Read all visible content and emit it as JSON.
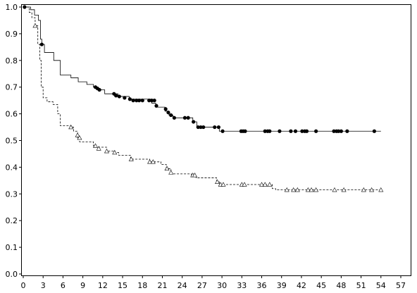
{
  "chart_data": {
    "type": "line",
    "title": "",
    "xlabel": "",
    "ylabel": "",
    "xlim": [
      0,
      57
    ],
    "ylim": [
      0,
      1
    ],
    "x_ticks": [
      0,
      3,
      6,
      9,
      12,
      15,
      18,
      21,
      24,
      27,
      30,
      33,
      36,
      39,
      42,
      45,
      48,
      51,
      54,
      57
    ],
    "y_ticks": [
      0.0,
      0.1,
      0.2,
      0.3,
      0.4,
      0.5,
      0.6,
      0.7,
      0.8,
      0.9,
      1.0
    ],
    "y_tick_labels": [
      "0.0",
      "0.1",
      "0.2",
      "0.3",
      "0.4",
      "0.5",
      "0.6",
      "0.7",
      "0.8",
      "0.9",
      "1.0"
    ],
    "grid": false,
    "legend": "none",
    "series": [
      {
        "line_style": "solid",
        "marker": "filled-circle",
        "color": "#000000",
        "steps": [
          [
            0,
            1.0
          ],
          [
            1.1,
            0.99
          ],
          [
            1.7,
            0.97
          ],
          [
            2.3,
            0.95
          ],
          [
            2.6,
            0.88
          ],
          [
            2.8,
            0.86
          ],
          [
            3.2,
            0.83
          ],
          [
            4.6,
            0.8
          ],
          [
            5.6,
            0.745
          ],
          [
            7.2,
            0.735
          ],
          [
            8.3,
            0.72
          ],
          [
            9.6,
            0.71
          ],
          [
            10.6,
            0.7
          ],
          [
            11.3,
            0.69
          ],
          [
            12.3,
            0.675
          ],
          [
            14.3,
            0.665
          ],
          [
            16.0,
            0.655
          ],
          [
            19.4,
            0.64
          ],
          [
            20.0,
            0.625
          ],
          [
            21.4,
            0.61
          ],
          [
            22.0,
            0.595
          ],
          [
            22.6,
            0.585
          ],
          [
            25.6,
            0.57
          ],
          [
            26.2,
            0.55
          ],
          [
            29.6,
            0.535
          ],
          [
            54.0,
            0.535
          ]
        ],
        "censored": [
          [
            0.2,
            1.0
          ],
          [
            2.8,
            0.86
          ],
          [
            10.9,
            0.7
          ],
          [
            11.2,
            0.695
          ],
          [
            11.5,
            0.69
          ],
          [
            13.7,
            0.675
          ],
          [
            14.0,
            0.668
          ],
          [
            14.5,
            0.665
          ],
          [
            15.3,
            0.66
          ],
          [
            16.1,
            0.655
          ],
          [
            16.6,
            0.65
          ],
          [
            17.1,
            0.65
          ],
          [
            17.5,
            0.65
          ],
          [
            18.0,
            0.65
          ],
          [
            19.0,
            0.65
          ],
          [
            19.4,
            0.65
          ],
          [
            19.8,
            0.65
          ],
          [
            20.1,
            0.63
          ],
          [
            21.5,
            0.618
          ],
          [
            21.9,
            0.605
          ],
          [
            22.3,
            0.595
          ],
          [
            22.8,
            0.585
          ],
          [
            24.4,
            0.585
          ],
          [
            24.9,
            0.585
          ],
          [
            25.7,
            0.57
          ],
          [
            26.4,
            0.55
          ],
          [
            26.8,
            0.55
          ],
          [
            27.2,
            0.55
          ],
          [
            28.9,
            0.55
          ],
          [
            29.5,
            0.55
          ],
          [
            30.1,
            0.535
          ],
          [
            32.9,
            0.535
          ],
          [
            33.2,
            0.535
          ],
          [
            33.5,
            0.535
          ],
          [
            36.5,
            0.535
          ],
          [
            36.9,
            0.535
          ],
          [
            37.2,
            0.535
          ],
          [
            38.7,
            0.535
          ],
          [
            40.4,
            0.535
          ],
          [
            41.1,
            0.535
          ],
          [
            42.1,
            0.535
          ],
          [
            42.5,
            0.535
          ],
          [
            42.8,
            0.535
          ],
          [
            44.2,
            0.535
          ],
          [
            46.9,
            0.535
          ],
          [
            47.3,
            0.535
          ],
          [
            47.6,
            0.535
          ],
          [
            48.0,
            0.535
          ],
          [
            48.9,
            0.535
          ],
          [
            53.0,
            0.535
          ]
        ]
      },
      {
        "line_style": "dashed",
        "marker": "open-triangle",
        "color": "#000000",
        "steps": [
          [
            0,
            1.0
          ],
          [
            0.9,
            0.98
          ],
          [
            1.3,
            0.96
          ],
          [
            1.8,
            0.93
          ],
          [
            2.2,
            0.86
          ],
          [
            2.5,
            0.8
          ],
          [
            2.7,
            0.7
          ],
          [
            3.0,
            0.66
          ],
          [
            3.6,
            0.645
          ],
          [
            4.5,
            0.635
          ],
          [
            5.2,
            0.6
          ],
          [
            5.6,
            0.555
          ],
          [
            7.1,
            0.55
          ],
          [
            7.6,
            0.535
          ],
          [
            8.2,
            0.51
          ],
          [
            8.5,
            0.495
          ],
          [
            10.6,
            0.48
          ],
          [
            11.0,
            0.475
          ],
          [
            12.6,
            0.46
          ],
          [
            13.7,
            0.455
          ],
          [
            14.4,
            0.445
          ],
          [
            16.2,
            0.43
          ],
          [
            19.1,
            0.42
          ],
          [
            20.8,
            0.41
          ],
          [
            21.6,
            0.395
          ],
          [
            22.3,
            0.375
          ],
          [
            25.4,
            0.37
          ],
          [
            26.1,
            0.36
          ],
          [
            29.2,
            0.345
          ],
          [
            29.6,
            0.335
          ],
          [
            37.6,
            0.32
          ],
          [
            38.1,
            0.315
          ],
          [
            54.0,
            0.315
          ]
        ],
        "censored": [
          [
            1.8,
            0.93
          ],
          [
            7.2,
            0.55
          ],
          [
            8.2,
            0.52
          ],
          [
            8.5,
            0.51
          ],
          [
            10.9,
            0.48
          ],
          [
            11.4,
            0.47
          ],
          [
            12.6,
            0.46
          ],
          [
            13.8,
            0.455
          ],
          [
            16.3,
            0.43
          ],
          [
            19.1,
            0.42
          ],
          [
            19.6,
            0.42
          ],
          [
            21.7,
            0.395
          ],
          [
            22.3,
            0.38
          ],
          [
            25.6,
            0.37
          ],
          [
            25.9,
            0.37
          ],
          [
            29.3,
            0.345
          ],
          [
            29.8,
            0.335
          ],
          [
            30.2,
            0.335
          ],
          [
            33.0,
            0.335
          ],
          [
            33.4,
            0.335
          ],
          [
            36.0,
            0.335
          ],
          [
            36.5,
            0.335
          ],
          [
            37.2,
            0.335
          ],
          [
            39.8,
            0.315
          ],
          [
            40.8,
            0.315
          ],
          [
            41.4,
            0.315
          ],
          [
            43.0,
            0.315
          ],
          [
            43.5,
            0.315
          ],
          [
            44.2,
            0.315
          ],
          [
            47.0,
            0.315
          ],
          [
            48.4,
            0.315
          ],
          [
            51.4,
            0.315
          ],
          [
            52.6,
            0.315
          ],
          [
            54.0,
            0.315
          ]
        ]
      }
    ]
  }
}
